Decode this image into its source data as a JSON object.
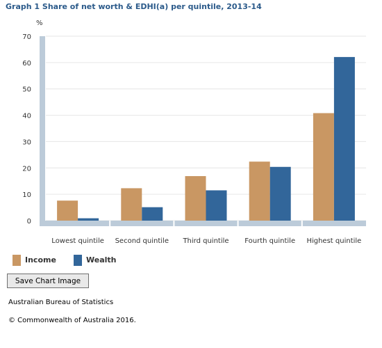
{
  "colors": {
    "title": "#2b5a8a",
    "income": "#c99763",
    "wealth": "#32669a",
    "axis_band": "#bccbd9",
    "gridline": "#e6e6e6",
    "tick_text": "#333333"
  },
  "legend": [
    {
      "name": "Income",
      "color": "#c99763"
    },
    {
      "name": "Wealth",
      "color": "#32669a"
    }
  ],
  "buttons": {
    "save_chart_image": "Save Chart Image"
  },
  "footer": {
    "source": "Australian Bureau of Statistics",
    "copyright": "© Commonwealth of Australia 2016."
  },
  "chart_data": {
    "type": "bar",
    "title": "Graph 1 Share of net worth & EDHI(a) per quintile, 2013-14",
    "xlabel": "",
    "ylabel": "%",
    "ylim": [
      0,
      70
    ],
    "yticks": [
      0,
      10,
      20,
      30,
      40,
      50,
      60,
      70
    ],
    "grid": true,
    "legend_position": "bottom-left",
    "categories": [
      "Lowest quintile",
      "Second quintile",
      "Third quintile",
      "Fourth quintile",
      "Highest quintile"
    ],
    "series": [
      {
        "name": "Income",
        "color": "#c99763",
        "values": [
          7.6,
          12.3,
          16.9,
          22.4,
          40.8
        ]
      },
      {
        "name": "Wealth",
        "color": "#32669a",
        "values": [
          0.9,
          5.1,
          11.5,
          20.4,
          62.1
        ]
      }
    ]
  }
}
